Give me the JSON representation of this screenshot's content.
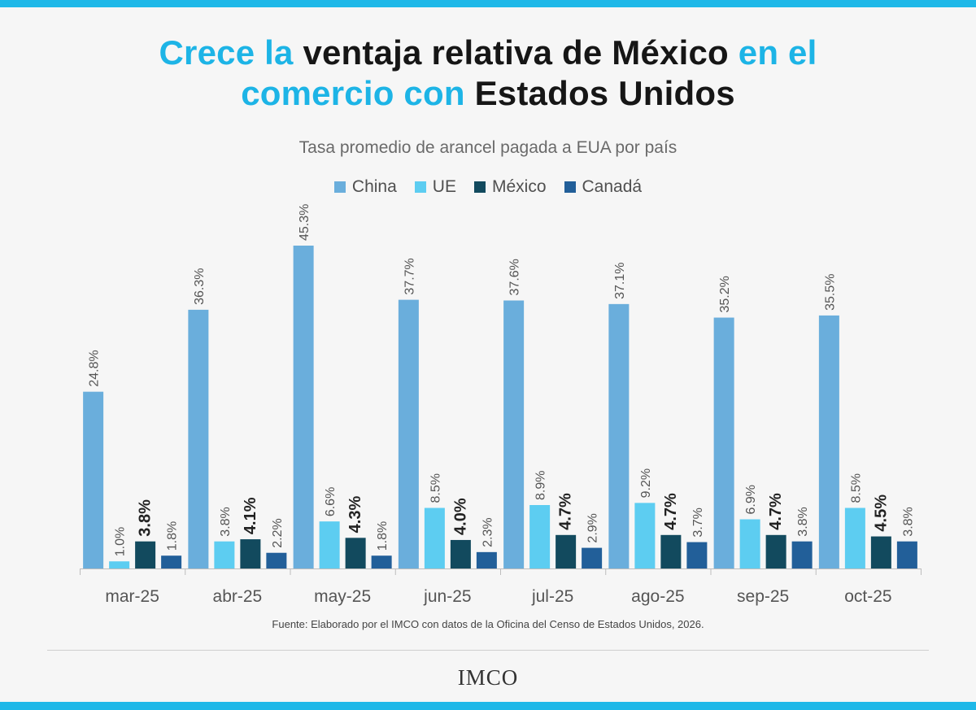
{
  "title": {
    "part1": "Crece la ",
    "part2": "ventaja relativa de México",
    "part3": " en el",
    "part4": "comercio con ",
    "part5": "Estados Unidos"
  },
  "colors": {
    "accent": "#1db4e6",
    "china": "#6aaedc",
    "ue": "#5dcdf1",
    "mexico": "#124a5e",
    "canada": "#225f99"
  },
  "source": "Fuente: Elaborado por el IMCO con datos de la Oficina del Censo de Estados Unidos, 2026.",
  "logo": "IMCO",
  "chart_data": {
    "type": "bar",
    "title": "Tasa promedio de arancel pagada a EUA por país",
    "xlabel": "",
    "ylabel": "",
    "legend": "top-center",
    "grid": false,
    "categories": [
      "mar-25",
      "abr-25",
      "may-25",
      "jun-25",
      "jul-25",
      "ago-25",
      "sep-25",
      "oct-25"
    ],
    "series": [
      {
        "name": "China",
        "color": "#6aaedc",
        "bold": false,
        "values": [
          24.8,
          36.3,
          45.3,
          37.7,
          37.6,
          37.1,
          35.2,
          35.5
        ]
      },
      {
        "name": "UE",
        "color": "#5dcdf1",
        "bold": false,
        "values": [
          1.0,
          3.8,
          6.6,
          8.5,
          8.9,
          9.2,
          6.9,
          8.5
        ]
      },
      {
        "name": "México",
        "color": "#124a5e",
        "bold": true,
        "values": [
          3.8,
          4.1,
          4.3,
          4.0,
          4.7,
          4.7,
          4.7,
          4.5
        ]
      },
      {
        "name": "Canadá",
        "color": "#225f99",
        "bold": false,
        "values": [
          1.8,
          2.2,
          1.8,
          2.3,
          2.9,
          3.7,
          3.8,
          3.8
        ]
      }
    ],
    "ylim": [
      0,
      45.3
    ]
  }
}
